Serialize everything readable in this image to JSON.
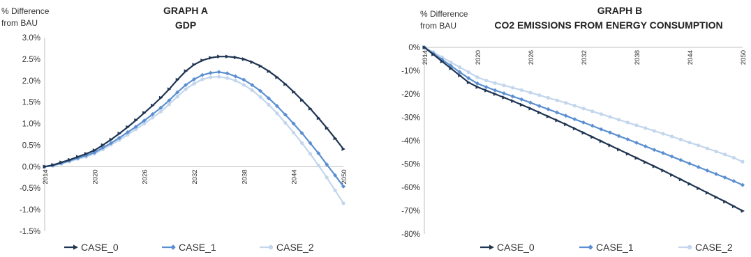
{
  "chart_data": [
    {
      "type": "line",
      "title": "GRAPH A",
      "subtitle": "GDP",
      "ylabel": "% Difference from BAU",
      "ylabel_lines": [
        "% Difference",
        "from BAU"
      ],
      "xlabel": "",
      "ylim": [
        -1.5,
        3.0
      ],
      "yticks": [
        3.0,
        2.5,
        2.0,
        1.5,
        1.0,
        0.5,
        0.0,
        -0.5,
        -1.0,
        -1.5
      ],
      "ytick_labels": [
        "3.0%",
        "2.5%",
        "2.0%",
        "1.5%",
        "1.0%",
        "0.5%",
        "0.0%",
        "-0.5%",
        "-1.0%",
        "-1.5%"
      ],
      "x": [
        2014,
        2015,
        2016,
        2017,
        2018,
        2019,
        2020,
        2021,
        2022,
        2023,
        2024,
        2025,
        2026,
        2027,
        2028,
        2029,
        2030,
        2031,
        2032,
        2033,
        2034,
        2035,
        2036,
        2037,
        2038,
        2039,
        2040,
        2041,
        2042,
        2043,
        2044,
        2045,
        2046,
        2047,
        2048,
        2049,
        2050
      ],
      "xtick_labels": [
        "2014",
        "2020",
        "2026",
        "2032",
        "2038",
        "2044",
        "2050"
      ],
      "grid": false,
      "legend": "bottom",
      "series": [
        {
          "name": "CASE_0",
          "color": "#1f3552",
          "marker": "arrow",
          "values": [
            0.0,
            0.04,
            0.1,
            0.16,
            0.23,
            0.3,
            0.38,
            0.5,
            0.63,
            0.77,
            0.92,
            1.08,
            1.25,
            1.42,
            1.6,
            1.8,
            2.02,
            2.22,
            2.37,
            2.47,
            2.53,
            2.56,
            2.56,
            2.54,
            2.5,
            2.43,
            2.34,
            2.22,
            2.08,
            1.92,
            1.74,
            1.55,
            1.35,
            1.13,
            0.9,
            0.66,
            0.41
          ]
        },
        {
          "name": "CASE_1",
          "color": "#5b8fd1",
          "marker": "diamond",
          "values": [
            0.0,
            0.03,
            0.08,
            0.14,
            0.2,
            0.26,
            0.33,
            0.44,
            0.55,
            0.67,
            0.8,
            0.93,
            1.07,
            1.22,
            1.37,
            1.54,
            1.73,
            1.9,
            2.03,
            2.13,
            2.18,
            2.2,
            2.17,
            2.1,
            2.02,
            1.9,
            1.76,
            1.59,
            1.41,
            1.21,
            1.0,
            0.78,
            0.55,
            0.31,
            0.05,
            -0.2,
            -0.46
          ]
        },
        {
          "name": "CASE_2",
          "color": "#c3d6ec",
          "marker": "circle",
          "values": [
            0.0,
            0.02,
            0.07,
            0.12,
            0.18,
            0.23,
            0.3,
            0.4,
            0.51,
            0.62,
            0.74,
            0.87,
            1.0,
            1.14,
            1.28,
            1.45,
            1.63,
            1.8,
            1.93,
            2.03,
            2.08,
            2.09,
            2.06,
            2.0,
            1.9,
            1.78,
            1.62,
            1.44,
            1.24,
            1.02,
            0.79,
            0.55,
            0.3,
            0.03,
            -0.25,
            -0.55,
            -0.85
          ]
        }
      ]
    },
    {
      "type": "line",
      "title": "GRAPH B",
      "subtitle": "CO2 EMISSIONS FROM ENERGY CONSUMPTION",
      "ylabel": "% Difference from BAU",
      "ylabel_lines": [
        "% Difference",
        "from BAU"
      ],
      "xlabel": "",
      "ylim": [
        -80,
        0
      ],
      "yticks": [
        0,
        -10,
        -20,
        -30,
        -40,
        -50,
        -60,
        -70,
        -80
      ],
      "ytick_labels": [
        "0%",
        "-10%",
        "-20%",
        "-30%",
        "-40%",
        "-50%",
        "-60%",
        "-70%",
        "-80%"
      ],
      "x": [
        2014,
        2015,
        2016,
        2017,
        2018,
        2019,
        2020,
        2021,
        2022,
        2023,
        2024,
        2025,
        2026,
        2027,
        2028,
        2029,
        2030,
        2031,
        2032,
        2033,
        2034,
        2035,
        2036,
        2037,
        2038,
        2039,
        2040,
        2041,
        2042,
        2043,
        2044,
        2045,
        2046,
        2047,
        2048,
        2049,
        2050
      ],
      "xtick_labels": [
        "2014",
        "2020",
        "2026",
        "2032",
        "2038",
        "2044",
        "2050"
      ],
      "grid": false,
      "legend": "bottom",
      "series": [
        {
          "name": "CASE_0",
          "color": "#1f3552",
          "marker": "arrow",
          "values": [
            0.0,
            -3.0,
            -6.0,
            -9.0,
            -12.0,
            -15.0,
            -17.0,
            -18.5,
            -20.0,
            -21.5,
            -23.0,
            -24.6,
            -26.2,
            -27.9,
            -29.6,
            -31.3,
            -33.0,
            -34.8,
            -36.6,
            -38.4,
            -40.2,
            -42.0,
            -43.8,
            -45.6,
            -47.4,
            -49.2,
            -51.0,
            -52.8,
            -54.7,
            -56.6,
            -58.5,
            -60.4,
            -62.3,
            -64.2,
            -66.1,
            -68.1,
            -70.1
          ]
        },
        {
          "name": "CASE_1",
          "color": "#5b8fd1",
          "marker": "diamond",
          "values": [
            0.0,
            -2.6,
            -5.2,
            -7.9,
            -10.6,
            -13.2,
            -15.5,
            -17.0,
            -18.4,
            -19.7,
            -21.0,
            -22.3,
            -23.7,
            -25.1,
            -26.5,
            -27.9,
            -29.3,
            -30.8,
            -32.2,
            -33.6,
            -35.1,
            -36.5,
            -38.0,
            -39.4,
            -40.9,
            -42.4,
            -43.9,
            -45.3,
            -46.8,
            -48.3,
            -49.8,
            -51.3,
            -52.8,
            -54.3,
            -55.8,
            -57.3,
            -59.0
          ]
        },
        {
          "name": "CASE_2",
          "color": "#c3d6ec",
          "marker": "circle",
          "values": [
            0.0,
            -2.0,
            -4.2,
            -6.4,
            -8.5,
            -10.6,
            -12.8,
            -14.2,
            -15.3,
            -16.3,
            -17.3,
            -18.3,
            -19.4,
            -20.5,
            -21.6,
            -22.7,
            -23.8,
            -25.0,
            -26.2,
            -27.4,
            -28.6,
            -29.8,
            -31.0,
            -32.2,
            -33.4,
            -34.6,
            -35.8,
            -37.0,
            -38.2,
            -39.5,
            -40.8,
            -42.0,
            -43.3,
            -44.6,
            -45.9,
            -47.3,
            -49.0
          ]
        }
      ]
    }
  ]
}
